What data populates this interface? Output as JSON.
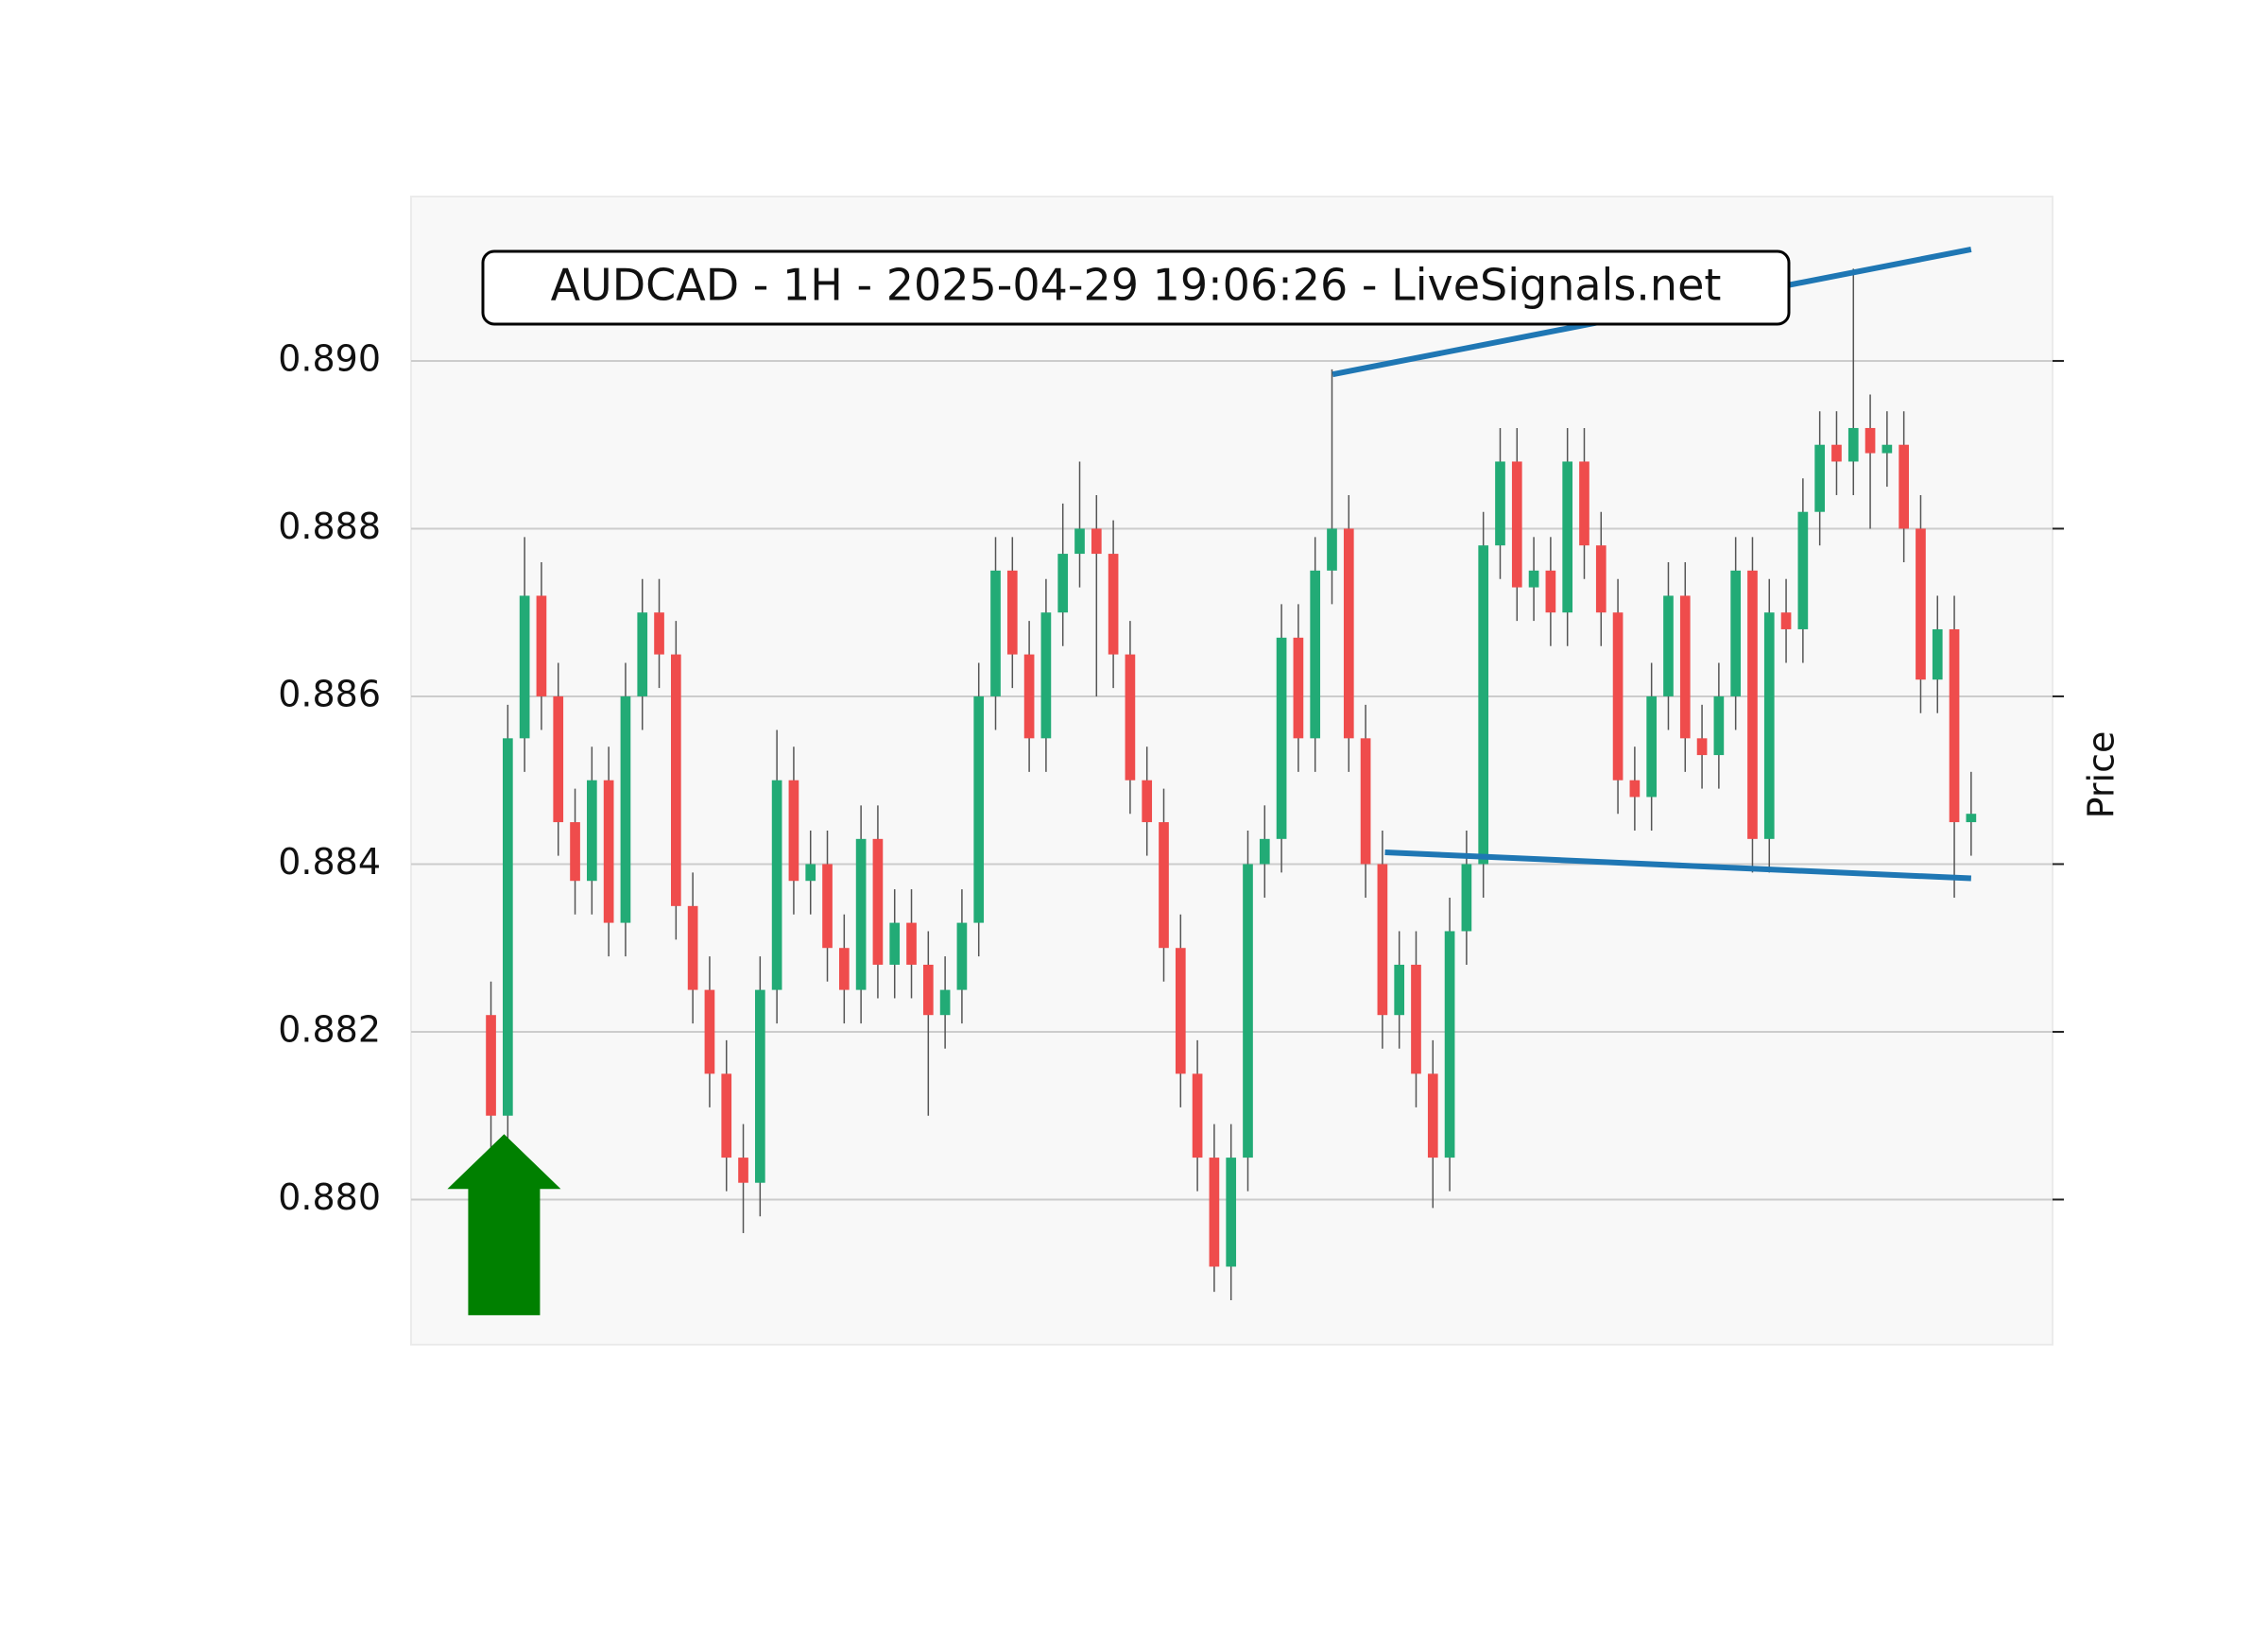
{
  "chart_data": {
    "type": "candlestick",
    "title": "AUDCAD - 1H - 2025-04-29 19:06:26 - LiveSignals.net",
    "y_label": "Price",
    "open": [
      0.8822,
      0.881,
      0.8855,
      0.8872,
      0.886,
      0.8845,
      0.8838,
      0.885,
      0.8833,
      0.886,
      0.887,
      0.8865,
      0.8835,
      0.8825,
      0.8815,
      0.8805,
      0.8802,
      0.8825,
      0.885,
      0.8838,
      0.884,
      0.883,
      0.8825,
      0.8843,
      0.8828,
      0.8833,
      0.8828,
      0.8822,
      0.8825,
      0.8833,
      0.886,
      0.8875,
      0.8865,
      0.8855,
      0.887,
      0.8877,
      0.888,
      0.8877,
      0.8865,
      0.885,
      0.8845,
      0.883,
      0.8815,
      0.8805,
      0.8792,
      0.8805,
      0.884,
      0.8843,
      0.8867,
      0.8855,
      0.8875,
      0.888,
      0.8855,
      0.884,
      0.8822,
      0.8828,
      0.8815,
      0.8805,
      0.8832,
      0.884,
      0.8878,
      0.8888,
      0.8873,
      0.8875,
      0.887,
      0.8888,
      0.8878,
      0.887,
      0.885,
      0.8848,
      0.886,
      0.8872,
      0.8855,
      0.8853,
      0.886,
      0.8875,
      0.8843,
      0.887,
      0.8868,
      0.8882,
      0.889,
      0.8888,
      0.8892,
      0.8889,
      0.889,
      0.888,
      0.8862,
      0.8868,
      0.8845
    ],
    "high": [
      0.8826,
      0.8859,
      0.8879,
      0.8876,
      0.8864,
      0.8849,
      0.8854,
      0.8854,
      0.8864,
      0.8874,
      0.8874,
      0.8869,
      0.8839,
      0.8829,
      0.8819,
      0.8809,
      0.8829,
      0.8856,
      0.8854,
      0.8844,
      0.8844,
      0.8834,
      0.8847,
      0.8847,
      0.8837,
      0.8837,
      0.8832,
      0.8829,
      0.8837,
      0.8864,
      0.8879,
      0.8879,
      0.8869,
      0.8874,
      0.8883,
      0.8888,
      0.8884,
      0.8881,
      0.8869,
      0.8854,
      0.8849,
      0.8834,
      0.8819,
      0.8809,
      0.8809,
      0.8844,
      0.8847,
      0.8871,
      0.8871,
      0.8879,
      0.8899,
      0.8884,
      0.8859,
      0.8844,
      0.8832,
      0.8832,
      0.8819,
      0.8836,
      0.8844,
      0.8882,
      0.8892,
      0.8892,
      0.8879,
      0.8879,
      0.8892,
      0.8892,
      0.8882,
      0.8874,
      0.8854,
      0.8864,
      0.8876,
      0.8876,
      0.8859,
      0.8864,
      0.8879,
      0.8879,
      0.8874,
      0.8874,
      0.8886,
      0.8894,
      0.8894,
      0.8911,
      0.8896,
      0.8894,
      0.8894,
      0.8884,
      0.8872,
      0.8872,
      0.8851
    ],
    "low": [
      0.8806,
      0.8806,
      0.8851,
      0.8856,
      0.8841,
      0.8834,
      0.8834,
      0.8829,
      0.8829,
      0.8856,
      0.8861,
      0.8831,
      0.8821,
      0.8811,
      0.8801,
      0.8796,
      0.8798,
      0.8821,
      0.8834,
      0.8834,
      0.8826,
      0.8821,
      0.8821,
      0.8824,
      0.8824,
      0.8824,
      0.881,
      0.8818,
      0.8821,
      0.8829,
      0.8856,
      0.8861,
      0.8851,
      0.8851,
      0.8866,
      0.8873,
      0.886,
      0.8861,
      0.8846,
      0.8841,
      0.8826,
      0.8811,
      0.8801,
      0.8789,
      0.8788,
      0.8801,
      0.8836,
      0.8839,
      0.8851,
      0.8851,
      0.8871,
      0.8851,
      0.8836,
      0.8818,
      0.8818,
      0.8811,
      0.8799,
      0.8801,
      0.8828,
      0.8836,
      0.8874,
      0.8869,
      0.8869,
      0.8866,
      0.8866,
      0.8874,
      0.8866,
      0.8846,
      0.8844,
      0.8844,
      0.8856,
      0.8851,
      0.8849,
      0.8849,
      0.8856,
      0.8839,
      0.8839,
      0.8864,
      0.8864,
      0.8878,
      0.8884,
      0.8884,
      0.888,
      0.8885,
      0.8876,
      0.8858,
      0.8858,
      0.8836,
      0.8841
    ],
    "close": [
      0.881,
      0.8855,
      0.8872,
      0.886,
      0.8845,
      0.8838,
      0.885,
      0.8833,
      0.886,
      0.887,
      0.8865,
      0.8835,
      0.8825,
      0.8815,
      0.8805,
      0.8802,
      0.8825,
      0.885,
      0.8838,
      0.884,
      0.883,
      0.8825,
      0.8843,
      0.8828,
      0.8833,
      0.8828,
      0.8822,
      0.8825,
      0.8833,
      0.886,
      0.8875,
      0.8865,
      0.8855,
      0.887,
      0.8877,
      0.888,
      0.8877,
      0.8865,
      0.885,
      0.8845,
      0.883,
      0.8815,
      0.8805,
      0.8792,
      0.8805,
      0.884,
      0.8843,
      0.8867,
      0.8855,
      0.8875,
      0.888,
      0.8855,
      0.884,
      0.8822,
      0.8828,
      0.8815,
      0.8805,
      0.8832,
      0.884,
      0.8878,
      0.8888,
      0.8873,
      0.8875,
      0.887,
      0.8888,
      0.8878,
      0.887,
      0.885,
      0.8848,
      0.886,
      0.8872,
      0.8855,
      0.8853,
      0.886,
      0.8875,
      0.8843,
      0.887,
      0.8868,
      0.8882,
      0.889,
      0.8888,
      0.8892,
      0.8889,
      0.889,
      0.888,
      0.8862,
      0.8868,
      0.8845,
      0.8846
    ],
    "up_color": "#22ab76",
    "down_color": "#ef4c4c",
    "wick_color": "#555555",
    "xlim": [
      -4.75,
      92.84
    ],
    "ylim": [
      0.87827,
      0.89196
    ],
    "yticks": [
      {
        "value": 0.88,
        "label": "0.880"
      },
      {
        "value": 0.882,
        "label": "0.882"
      },
      {
        "value": 0.884,
        "label": "0.884"
      },
      {
        "value": 0.886,
        "label": "0.886"
      },
      {
        "value": 0.888,
        "label": "0.888"
      },
      {
        "value": 0.89,
        "label": "0.890"
      }
    ],
    "grid": true,
    "trend_lines": [
      {
        "x": [
          50.04,
          88
        ],
        "y": [
          0.88984,
          0.89133
        ],
        "color": "#1f77b4"
      },
      {
        "x": [
          53.15,
          88
        ],
        "y": [
          0.88414,
          0.88383
        ],
        "color": "#1f77b4"
      }
    ],
    "signal_arrow": {
      "x": 0.78,
      "y": 0.88078,
      "y_base": 0.87862,
      "color": "#008000"
    }
  }
}
